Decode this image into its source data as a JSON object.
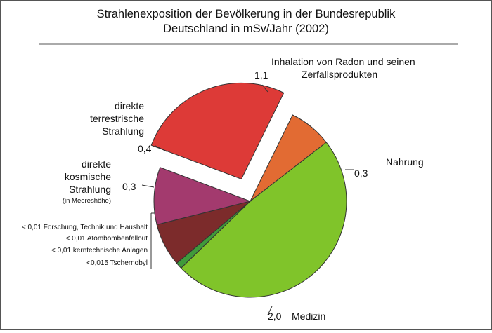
{
  "chart_data": {
    "type": "pie",
    "title_lines": [
      "Strahlenexposition der Bevölkerung in der Bundesrepublik",
      "Deutschland in mSv/Jahr (2002)"
    ],
    "slices": [
      {
        "name_lines": [
          "Inhalation von Radon und seinen",
          "Zerfallsprodukten"
        ],
        "value": 1.1,
        "value_label": "1,1",
        "color": "#dd3a37",
        "exploded": true
      },
      {
        "name_lines": [
          "Nahrung"
        ],
        "value": 0.3,
        "value_label": "0,3",
        "color": "#e26b33",
        "exploded": false
      },
      {
        "name_lines": [
          "Medizin"
        ],
        "value": 2.0,
        "value_label": "2,0",
        "color": "#80c42a",
        "exploded": false
      },
      {
        "name_lines": [
          "< 0,01 Forschung, Technik und Haushalt",
          "< 0,01 Atombombenfallout",
          "< 0,01 kerntechnische Anlagen",
          "<0,015 Tschernobyl"
        ],
        "value": 0.045,
        "value_label": "",
        "color": "#3f9a3b",
        "exploded": false,
        "grouped": true
      },
      {
        "name_lines": [
          "direkte",
          "kosmische",
          "Strahlung"
        ],
        "note": "(in Meereshöhe)",
        "value": 0.3,
        "value_label": "0,3",
        "color": "#7c2b2b",
        "exploded": false
      },
      {
        "name_lines": [
          "direkte",
          "terrestrische",
          "Strahlung"
        ],
        "value": 0.4,
        "value_label": "0,4",
        "color": "#a33a6e",
        "exploded": false
      }
    ]
  }
}
